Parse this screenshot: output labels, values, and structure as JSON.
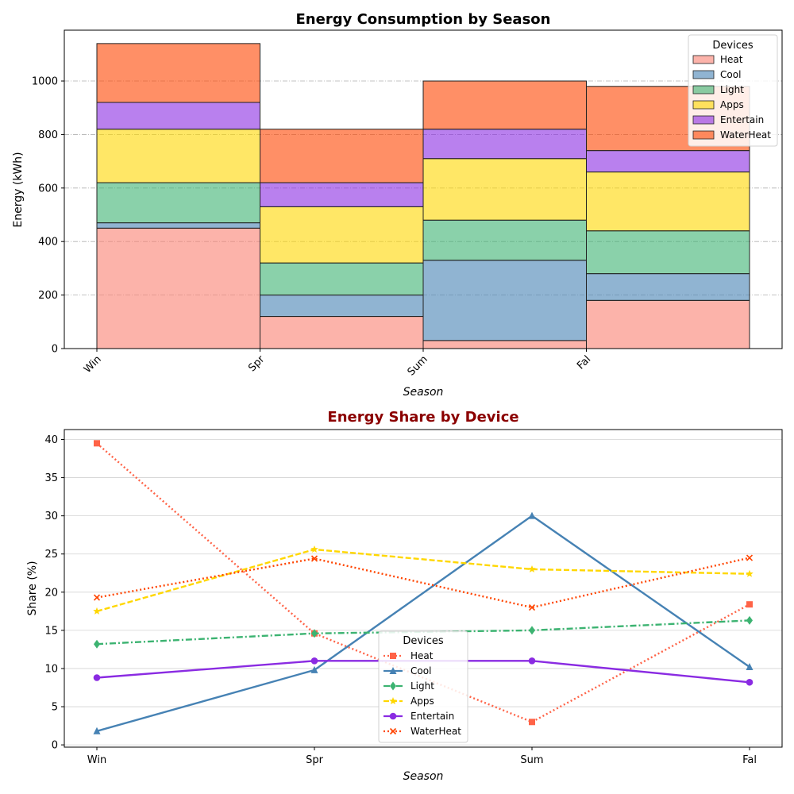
{
  "chart_data": [
    {
      "type": "bar",
      "stacked": true,
      "title": "Energy Consumption by Season",
      "xlabel": "Season",
      "ylabel": "Energy (kWh)",
      "categories": [
        "Win",
        "Spr",
        "Sum",
        "Fal"
      ],
      "ylim": [
        0,
        1190
      ],
      "yticks": [
        0,
        200,
        400,
        600,
        800,
        1000
      ],
      "grid": "y dash-dot",
      "legend_title": "Devices",
      "legend_position": "upper right",
      "series": [
        {
          "name": "Heat",
          "color": "#fa8072",
          "values": [
            450,
            120,
            30,
            180
          ]
        },
        {
          "name": "Cool",
          "color": "#4682b4",
          "values": [
            20,
            80,
            300,
            100
          ]
        },
        {
          "name": "Light",
          "color": "#3cb371",
          "values": [
            150,
            120,
            150,
            160
          ]
        },
        {
          "name": "Apps",
          "color": "#ffd700",
          "values": [
            200,
            210,
            230,
            220
          ]
        },
        {
          "name": "Entertain",
          "color": "#8a2be2",
          "values": [
            100,
            90,
            110,
            80
          ]
        },
        {
          "name": "WaterHeat",
          "color": "#ff4500",
          "values": [
            220,
            200,
            180,
            240
          ]
        }
      ]
    },
    {
      "type": "line",
      "title": "Energy Share by Device",
      "xlabel": "Season",
      "ylabel": "Share (%)",
      "categories": [
        "Win",
        "Spr",
        "Sum",
        "Fal"
      ],
      "ylim": [
        -0.3,
        41.3
      ],
      "yticks": [
        0,
        5,
        10,
        15,
        20,
        25,
        30,
        35,
        40
      ],
      "grid": "y",
      "legend_title": "Devices",
      "legend_position": "lower center",
      "series": [
        {
          "name": "Heat",
          "color": "#ff6347",
          "style": "dotted",
          "marker": "square",
          "values": [
            39.5,
            14.6,
            3.0,
            18.4
          ]
        },
        {
          "name": "Cool",
          "color": "#4682b4",
          "style": "solid",
          "marker": "triangle",
          "values": [
            1.8,
            9.8,
            30.0,
            10.2
          ]
        },
        {
          "name": "Light",
          "color": "#3cb371",
          "style": "dashdot",
          "marker": "diamond",
          "values": [
            13.2,
            14.6,
            15.0,
            16.3
          ]
        },
        {
          "name": "Apps",
          "color": "#ffd700",
          "style": "dashed",
          "marker": "star",
          "values": [
            17.5,
            25.6,
            23.0,
            22.4
          ]
        },
        {
          "name": "Entertain",
          "color": "#8a2be2",
          "style": "solid",
          "marker": "circle",
          "values": [
            8.8,
            11.0,
            11.0,
            8.2
          ]
        },
        {
          "name": "WaterHeat",
          "color": "#ff4500",
          "style": "dotted",
          "marker": "x",
          "values": [
            19.3,
            24.4,
            18.0,
            24.5
          ]
        }
      ]
    }
  ]
}
